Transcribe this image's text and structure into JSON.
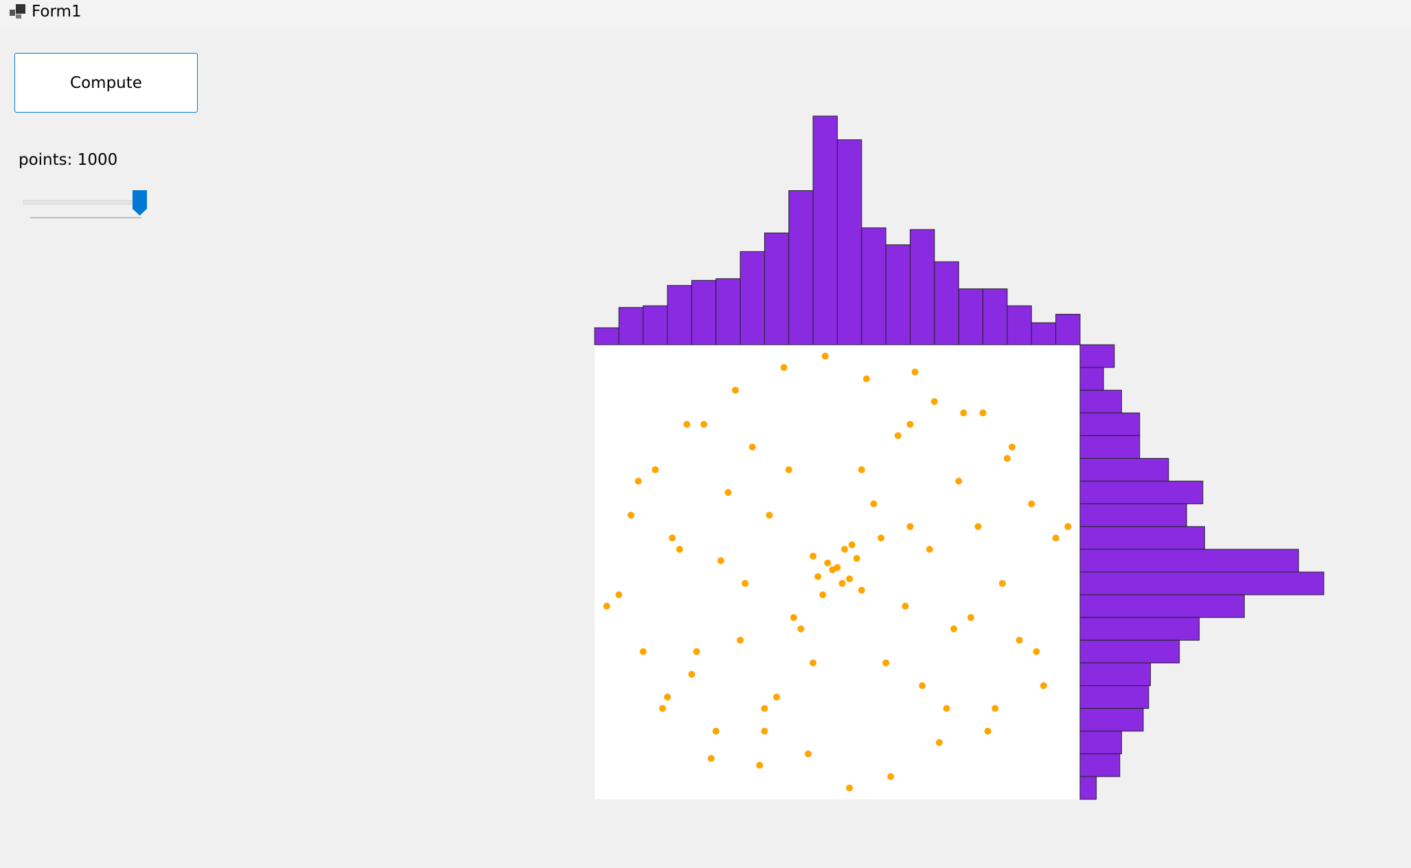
{
  "window": {
    "title": "Form1"
  },
  "controls": {
    "button": "Compute",
    "label": "points: 1000"
  },
  "chart_data": {
    "type": "scatter-hist",
    "color": "#ffa500",
    "hist_color": "#8a2be2",
    "xlim": [
      -1,
      1
    ],
    "ylim": [
      -1,
      1
    ],
    "x": [
      0,
      0.05,
      -0.04,
      0.02,
      -0.02,
      0.08,
      -0.08,
      0.1,
      -0.1,
      0.03,
      -0.06,
      0.06,
      0.15,
      -0.15,
      0.2,
      -0.2,
      0.25,
      -0.25,
      0.3,
      -0.3,
      0.35,
      -0.35,
      0.4,
      -0.4,
      0.45,
      -0.45,
      0.5,
      -0.5,
      0.55,
      -0.55,
      0.6,
      -0.6,
      0.65,
      -0.65,
      0.7,
      -0.7,
      0.75,
      -0.75,
      0.8,
      -0.8,
      0.85,
      -0.85,
      0.9,
      -0.9,
      0.95,
      -0.95,
      0.12,
      -0.12,
      0.22,
      -0.22,
      0.32,
      -0.32,
      0.42,
      -0.42,
      0.52,
      -0.52,
      0.62,
      -0.62,
      0.72,
      -0.72,
      0.82,
      -0.82,
      0.05,
      -0.05,
      0.18,
      -0.18,
      0.28,
      -0.28,
      0.38,
      -0.38,
      0.48,
      -0.48,
      0.58,
      -0.58,
      0.68,
      -0.68,
      0.1,
      -0.1,
      0.3,
      -0.3
    ],
    "y": [
      0.02,
      -0.03,
      0.04,
      -0.05,
      0.01,
      0.06,
      -0.02,
      -0.08,
      0.07,
      0.1,
      -0.1,
      0.12,
      0.3,
      -0.25,
      -0.4,
      0.45,
      0.6,
      -0.55,
      0.2,
      -0.7,
      -0.5,
      0.55,
      0.75,
      -0.3,
      -0.6,
      0.35,
      0.4,
      -0.7,
      -0.2,
      0.65,
      0.7,
      -0.45,
      -0.6,
      0.1,
      0.5,
      -0.55,
      -0.3,
      0.45,
      0.3,
      -0.35,
      -0.5,
      0.25,
      0.15,
      -0.1,
      0.2,
      -0.15,
      0.85,
      -0.8,
      -0.9,
      0.9,
      0.88,
      -0.85,
      -0.75,
      0.8,
      0.7,
      -0.82,
      -0.7,
      0.65,
      0.55,
      -0.6,
      -0.35,
      0.4,
      -0.95,
      0.95,
      0.15,
      -0.2,
      -0.15,
      0.25,
      0.1,
      -0.05,
      -0.25,
      0.05,
      0.2,
      -0.35,
      -0.05,
      0.15,
      0.45,
      -0.4,
      0.65,
      -0.6
    ],
    "x_hist": [
      10,
      22,
      23,
      35,
      38,
      39,
      55,
      66,
      91,
      135,
      121,
      69,
      59,
      68,
      49,
      33,
      33,
      23,
      13,
      18
    ],
    "y_hist": [
      19,
      13,
      23,
      33,
      33,
      49,
      68,
      59,
      69,
      121,
      135,
      91,
      66,
      55,
      39,
      38,
      35,
      23,
      22,
      9
    ]
  }
}
